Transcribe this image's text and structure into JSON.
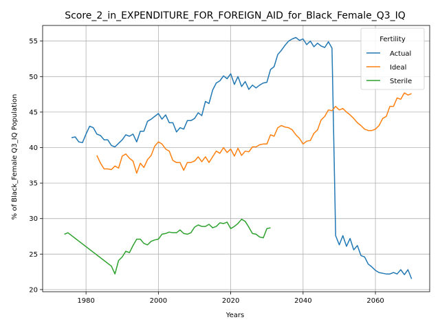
{
  "chart_data": {
    "type": "line",
    "title": "Score_2_in_EXPENDITURE_FOR_FOREIGN_AID_for_Black_Female_Q3_IQ",
    "xlabel": "Years",
    "ylabel": "% of Black_Female Q3_IQ Population",
    "xlim": [
      1968,
      2075
    ],
    "ylim": [
      19.7,
      57.2
    ],
    "xticks": [
      1980,
      2000,
      2020,
      2040,
      2060
    ],
    "yticks": [
      20,
      25,
      30,
      35,
      40,
      45,
      50,
      55
    ],
    "grid": true,
    "legend": {
      "title": "Fertility",
      "position": "top-right"
    },
    "series": [
      {
        "name": "Actual",
        "color": "#1f77b4",
        "points": [
          [
            1976,
            41.4
          ],
          [
            1977,
            41.5
          ],
          [
            1978,
            40.8
          ],
          [
            1979,
            40.7
          ],
          [
            1980,
            41.9
          ],
          [
            1981,
            43.0
          ],
          [
            1982,
            42.8
          ],
          [
            1983,
            41.9
          ],
          [
            1984,
            41.7
          ],
          [
            1985,
            41.1
          ],
          [
            1986,
            41.1
          ],
          [
            1987,
            40.3
          ],
          [
            1988,
            40.1
          ],
          [
            1989,
            40.6
          ],
          [
            1990,
            41.1
          ],
          [
            1991,
            41.8
          ],
          [
            1992,
            41.6
          ],
          [
            1993,
            41.9
          ],
          [
            1994,
            40.8
          ],
          [
            1995,
            42.3
          ],
          [
            1996,
            42.3
          ],
          [
            1997,
            43.7
          ],
          [
            1998,
            44.0
          ],
          [
            1999,
            44.4
          ],
          [
            2000,
            44.8
          ],
          [
            2001,
            44.0
          ],
          [
            2002,
            44.6
          ],
          [
            2003,
            43.5
          ],
          [
            2004,
            43.5
          ],
          [
            2005,
            42.2
          ],
          [
            2006,
            42.8
          ],
          [
            2007,
            42.6
          ],
          [
            2008,
            43.8
          ],
          [
            2009,
            43.8
          ],
          [
            2010,
            44.1
          ],
          [
            2011,
            44.9
          ],
          [
            2012,
            44.5
          ],
          [
            2013,
            46.5
          ],
          [
            2014,
            46.2
          ],
          [
            2015,
            48.1
          ],
          [
            2016,
            49.1
          ],
          [
            2017,
            49.4
          ],
          [
            2018,
            50.1
          ],
          [
            2019,
            49.7
          ],
          [
            2020,
            50.4
          ],
          [
            2021,
            48.9
          ],
          [
            2022,
            50.0
          ],
          [
            2023,
            48.6
          ],
          [
            2024,
            49.3
          ],
          [
            2025,
            48.2
          ],
          [
            2026,
            48.8
          ],
          [
            2027,
            48.4
          ],
          [
            2028,
            48.8
          ],
          [
            2029,
            49.1
          ],
          [
            2030,
            49.2
          ],
          [
            2031,
            51.0
          ],
          [
            2032,
            51.4
          ],
          [
            2033,
            53.1
          ],
          [
            2034,
            53.7
          ],
          [
            2035,
            54.4
          ],
          [
            2036,
            55.0
          ],
          [
            2037,
            55.3
          ],
          [
            2038,
            55.5
          ],
          [
            2039,
            55.1
          ],
          [
            2040,
            55.3
          ],
          [
            2041,
            54.5
          ],
          [
            2042,
            55.0
          ],
          [
            2043,
            54.2
          ],
          [
            2044,
            54.7
          ],
          [
            2045,
            54.3
          ],
          [
            2046,
            54.1
          ],
          [
            2047,
            54.9
          ],
          [
            2048,
            54.0
          ],
          [
            2049,
            27.6
          ],
          [
            2050,
            26.3
          ],
          [
            2051,
            27.6
          ],
          [
            2052,
            26.1
          ],
          [
            2053,
            27.2
          ],
          [
            2054,
            25.6
          ],
          [
            2055,
            26.2
          ],
          [
            2056,
            24.8
          ],
          [
            2057,
            24.6
          ],
          [
            2058,
            23.6
          ],
          [
            2059,
            23.2
          ],
          [
            2060,
            22.7
          ],
          [
            2061,
            22.4
          ],
          [
            2062,
            22.3
          ],
          [
            2063,
            22.2
          ],
          [
            2064,
            22.2
          ],
          [
            2065,
            22.4
          ],
          [
            2066,
            22.2
          ],
          [
            2067,
            22.8
          ],
          [
            2068,
            22.1
          ],
          [
            2069,
            22.8
          ],
          [
            2070,
            21.5
          ]
        ]
      },
      {
        "name": "Ideal",
        "color": "#ff7f0e",
        "points": [
          [
            1983,
            38.9
          ],
          [
            1984,
            37.8
          ],
          [
            1985,
            37.0
          ],
          [
            1986,
            37.0
          ],
          [
            1987,
            36.9
          ],
          [
            1988,
            37.4
          ],
          [
            1989,
            37.1
          ],
          [
            1990,
            38.8
          ],
          [
            1991,
            39.1
          ],
          [
            1992,
            38.5
          ],
          [
            1993,
            38.1
          ],
          [
            1994,
            36.4
          ],
          [
            1995,
            37.8
          ],
          [
            1996,
            37.2
          ],
          [
            1997,
            38.3
          ],
          [
            1998,
            38.9
          ],
          [
            1999,
            40.2
          ],
          [
            2000,
            40.8
          ],
          [
            2001,
            40.5
          ],
          [
            2002,
            39.8
          ],
          [
            2003,
            39.5
          ],
          [
            2004,
            38.2
          ],
          [
            2005,
            37.9
          ],
          [
            2006,
            37.9
          ],
          [
            2007,
            36.8
          ],
          [
            2008,
            37.9
          ],
          [
            2009,
            37.9
          ],
          [
            2010,
            38.1
          ],
          [
            2011,
            38.7
          ],
          [
            2012,
            38.0
          ],
          [
            2013,
            38.7
          ],
          [
            2014,
            37.9
          ],
          [
            2015,
            38.7
          ],
          [
            2016,
            39.5
          ],
          [
            2017,
            39.2
          ],
          [
            2018,
            40.0
          ],
          [
            2019,
            39.3
          ],
          [
            2020,
            39.8
          ],
          [
            2021,
            38.8
          ],
          [
            2022,
            39.9
          ],
          [
            2023,
            38.9
          ],
          [
            2024,
            39.5
          ],
          [
            2025,
            39.4
          ],
          [
            2026,
            40.1
          ],
          [
            2027,
            40.1
          ],
          [
            2028,
            40.4
          ],
          [
            2029,
            40.5
          ],
          [
            2030,
            40.5
          ],
          [
            2031,
            41.8
          ],
          [
            2032,
            41.6
          ],
          [
            2033,
            42.8
          ],
          [
            2034,
            43.1
          ],
          [
            2035,
            42.9
          ],
          [
            2036,
            42.8
          ],
          [
            2037,
            42.5
          ],
          [
            2038,
            41.8
          ],
          [
            2039,
            41.3
          ],
          [
            2040,
            40.5
          ],
          [
            2041,
            40.9
          ],
          [
            2042,
            41.0
          ],
          [
            2043,
            42.0
          ],
          [
            2044,
            42.5
          ],
          [
            2045,
            43.9
          ],
          [
            2046,
            44.4
          ],
          [
            2047,
            45.3
          ],
          [
            2048,
            45.2
          ],
          [
            2049,
            45.8
          ],
          [
            2050,
            45.3
          ],
          [
            2051,
            45.5
          ],
          [
            2052,
            45.0
          ],
          [
            2053,
            44.6
          ],
          [
            2054,
            44.1
          ],
          [
            2055,
            43.5
          ],
          [
            2056,
            43.1
          ],
          [
            2057,
            42.6
          ],
          [
            2058,
            42.4
          ],
          [
            2059,
            42.4
          ],
          [
            2060,
            42.6
          ],
          [
            2061,
            43.1
          ],
          [
            2062,
            44.1
          ],
          [
            2063,
            44.4
          ],
          [
            2064,
            45.8
          ],
          [
            2065,
            45.8
          ],
          [
            2066,
            47.0
          ],
          [
            2067,
            46.8
          ],
          [
            2068,
            47.7
          ],
          [
            2069,
            47.4
          ],
          [
            2070,
            47.6
          ]
        ]
      },
      {
        "name": "Sterile",
        "color": "#2ca02c",
        "points": [
          [
            1974,
            27.8
          ],
          [
            1975,
            28.0
          ],
          [
            1987,
            23.3
          ],
          [
            1988,
            22.2
          ],
          [
            1989,
            24.1
          ],
          [
            1990,
            24.6
          ],
          [
            1991,
            25.4
          ],
          [
            1992,
            25.2
          ],
          [
            1993,
            26.2
          ],
          [
            1994,
            27.1
          ],
          [
            1995,
            27.1
          ],
          [
            1996,
            26.5
          ],
          [
            1997,
            26.3
          ],
          [
            1998,
            26.8
          ],
          [
            1999,
            27.0
          ],
          [
            2000,
            27.1
          ],
          [
            2001,
            27.8
          ],
          [
            2002,
            27.9
          ],
          [
            2003,
            28.1
          ],
          [
            2004,
            28.0
          ],
          [
            2005,
            28.0
          ],
          [
            2006,
            28.4
          ],
          [
            2007,
            27.9
          ],
          [
            2008,
            27.8
          ],
          [
            2009,
            28.0
          ],
          [
            2010,
            28.8
          ],
          [
            2011,
            29.1
          ],
          [
            2012,
            28.9
          ],
          [
            2013,
            28.9
          ],
          [
            2014,
            29.2
          ],
          [
            2015,
            28.7
          ],
          [
            2016,
            28.9
          ],
          [
            2017,
            29.4
          ],
          [
            2018,
            29.3
          ],
          [
            2019,
            29.5
          ],
          [
            2020,
            28.6
          ],
          [
            2021,
            28.9
          ],
          [
            2022,
            29.3
          ],
          [
            2023,
            29.9
          ],
          [
            2024,
            29.6
          ],
          [
            2025,
            28.8
          ],
          [
            2026,
            27.9
          ],
          [
            2027,
            27.8
          ],
          [
            2028,
            27.4
          ],
          [
            2029,
            27.3
          ],
          [
            2030,
            28.6
          ],
          [
            2031,
            28.7
          ]
        ]
      }
    ]
  }
}
